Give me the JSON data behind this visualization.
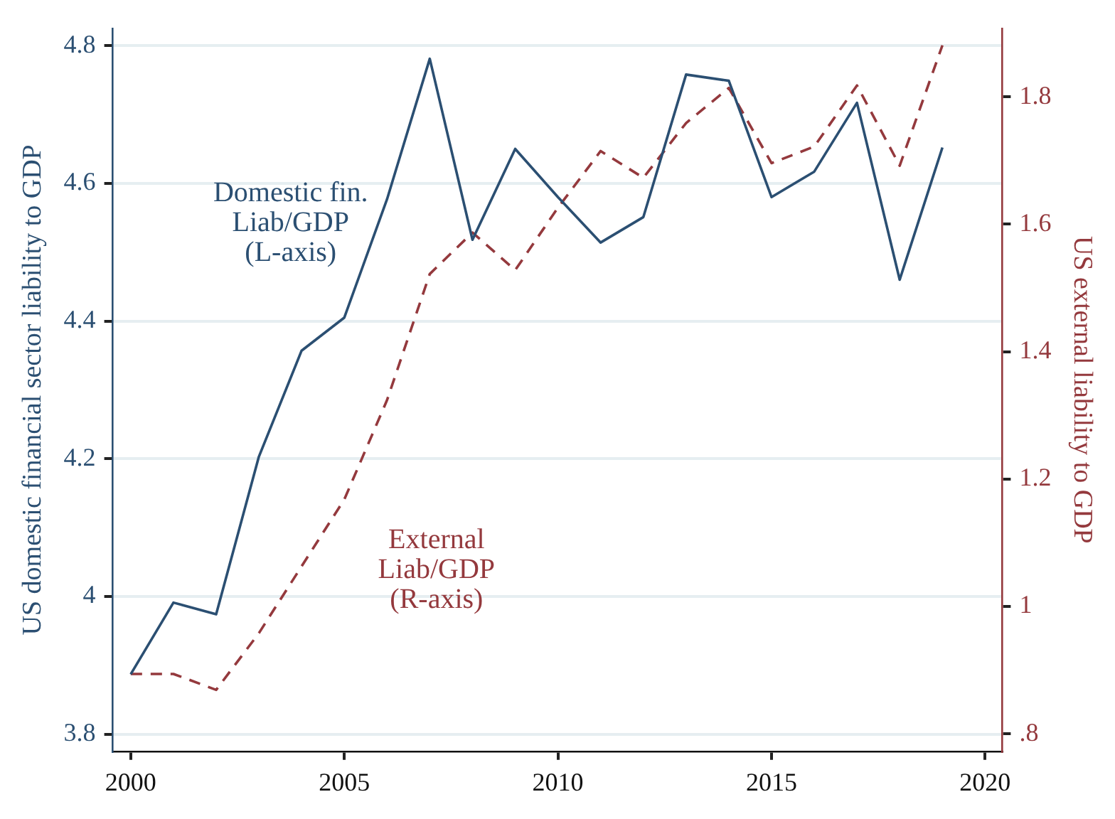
{
  "chart_data": {
    "type": "line",
    "ylabel": "US domestic financial sector liability to GDP",
    "y2label": "US external liability to GDP",
    "x": [
      2000,
      2001,
      2002,
      2003,
      2004,
      2005,
      2006,
      2007,
      2008,
      2009,
      2010,
      2011,
      2012,
      2013,
      2014,
      2015,
      2016,
      2017,
      2018,
      2019
    ],
    "xlim": [
      1999.58,
      2020.4
    ],
    "xticks": [
      2000,
      2005,
      2010,
      2015,
      2020
    ],
    "ylim": [
      3.775,
      4.825
    ],
    "yticks": [
      3.8,
      4,
      4.2,
      4.4,
      4.6,
      4.8
    ],
    "y2lim": [
      0.7725,
      1.9075
    ],
    "y2ticks": [
      {
        "value": 0.8,
        "label": ".8"
      },
      1,
      1.2,
      1.4,
      1.6,
      1.8
    ],
    "grid": "y",
    "legend": false,
    "marker": "none",
    "series": [
      {
        "name": "Domestic fin.\nLiab/GDP\n(L-axis)",
        "color": "#2b4f72",
        "line_style": "solid",
        "values": [
          3.887,
          3.991,
          3.974,
          4.203,
          4.357,
          4.405,
          4.577,
          4.781,
          4.518,
          4.65,
          4.58,
          4.514,
          4.551,
          4.758,
          4.749,
          4.58,
          4.617,
          4.717,
          4.46,
          4.652
        ]
      },
      {
        "name": "External\nLiab/GDP\n(R-axis)",
        "color": "#94393d",
        "line_style": "dashed",
        "axis": "y2",
        "values": [
          0.894,
          0.894,
          0.869,
          0.958,
          1.063,
          1.168,
          1.324,
          1.522,
          1.587,
          1.528,
          1.626,
          1.715,
          1.673,
          1.759,
          1.814,
          1.696,
          1.722,
          1.818,
          1.692,
          1.881
        ]
      }
    ]
  }
}
